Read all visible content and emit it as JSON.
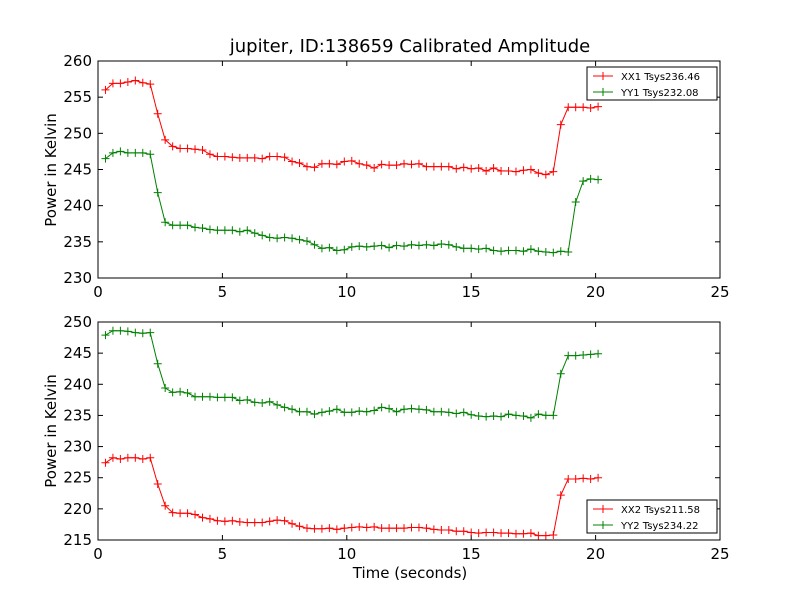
{
  "chart_data": [
    {
      "type": "line",
      "title": "jupiter, ID:138659 Calibrated Amplitude",
      "xlabel": "",
      "ylabel": "Power in Kelvin",
      "xlim": [
        0,
        25
      ],
      "ylim": [
        230,
        260
      ],
      "xticks": [
        "0",
        "5",
        "10",
        "15",
        "20",
        "25"
      ],
      "yticks": [
        "230",
        "235",
        "240",
        "245",
        "250",
        "255",
        "260"
      ],
      "legend_position": "top-right",
      "grid": false,
      "series": [
        {
          "name": "XX1 Tsys236.46",
          "color": "#ff0000",
          "x": [
            0.3,
            0.6,
            0.9,
            1.2,
            1.5,
            1.8,
            2.1,
            2.4,
            2.7,
            3.0,
            3.3,
            3.6,
            3.9,
            4.2,
            4.5,
            4.8,
            5.1,
            5.4,
            5.7,
            6.0,
            6.3,
            6.6,
            6.9,
            7.2,
            7.5,
            7.8,
            8.1,
            8.4,
            8.7,
            9.0,
            9.3,
            9.6,
            9.9,
            10.2,
            10.5,
            10.8,
            11.1,
            11.4,
            11.7,
            12.0,
            12.3,
            12.6,
            12.9,
            13.2,
            13.5,
            13.8,
            14.1,
            14.4,
            14.7,
            15.0,
            15.3,
            15.6,
            15.9,
            16.2,
            16.5,
            16.8,
            17.1,
            17.4,
            17.7,
            18.0,
            18.3,
            18.6,
            18.9,
            19.2,
            19.5,
            19.8,
            20.1
          ],
          "y": [
            256.0,
            256.9,
            256.9,
            257.1,
            257.3,
            257.0,
            256.8,
            252.7,
            249.1,
            248.2,
            247.9,
            247.9,
            247.8,
            247.7,
            247.1,
            246.8,
            246.8,
            246.7,
            246.6,
            246.6,
            246.6,
            246.5,
            246.8,
            246.8,
            246.7,
            246.1,
            245.9,
            245.4,
            245.3,
            245.8,
            245.8,
            245.7,
            246.1,
            246.2,
            245.8,
            245.6,
            245.2,
            245.7,
            245.6,
            245.6,
            245.8,
            245.7,
            245.8,
            245.4,
            245.4,
            245.4,
            245.4,
            245.1,
            245.3,
            245.1,
            245.2,
            244.8,
            245.2,
            244.8,
            244.8,
            244.7,
            244.9,
            245.0,
            244.5,
            244.3,
            244.7,
            251.2,
            253.6,
            253.6,
            253.6,
            253.5,
            253.7
          ]
        },
        {
          "name": "YY1 Tsys232.08",
          "color": "#008000",
          "x": [
            0.3,
            0.6,
            0.9,
            1.2,
            1.5,
            1.8,
            2.1,
            2.4,
            2.7,
            3.0,
            3.3,
            3.6,
            3.9,
            4.2,
            4.5,
            4.8,
            5.1,
            5.4,
            5.7,
            6.0,
            6.3,
            6.6,
            6.9,
            7.2,
            7.5,
            7.8,
            8.1,
            8.4,
            8.7,
            9.0,
            9.3,
            9.6,
            9.9,
            10.2,
            10.5,
            10.8,
            11.1,
            11.4,
            11.7,
            12.0,
            12.3,
            12.6,
            12.9,
            13.2,
            13.5,
            13.8,
            14.1,
            14.4,
            14.7,
            15.0,
            15.3,
            15.6,
            15.9,
            16.2,
            16.5,
            16.8,
            17.1,
            17.4,
            17.7,
            18.0,
            18.3,
            18.6,
            18.9,
            19.2,
            19.5,
            19.8,
            20.1
          ],
          "y": [
            246.5,
            247.3,
            247.5,
            247.3,
            247.3,
            247.3,
            247.1,
            241.8,
            237.7,
            237.3,
            237.3,
            237.3,
            237.0,
            236.9,
            236.7,
            236.6,
            236.6,
            236.6,
            236.4,
            236.6,
            236.2,
            235.9,
            235.6,
            235.5,
            235.6,
            235.5,
            235.3,
            235.1,
            234.6,
            234.1,
            234.2,
            233.8,
            233.9,
            234.3,
            234.4,
            234.3,
            234.4,
            234.5,
            234.2,
            234.5,
            234.4,
            234.6,
            234.5,
            234.6,
            234.5,
            234.7,
            234.6,
            234.3,
            234.1,
            234.1,
            234.0,
            234.1,
            233.8,
            233.7,
            233.8,
            233.8,
            233.7,
            234.0,
            233.7,
            233.6,
            233.5,
            233.7,
            233.6,
            240.5,
            243.4,
            243.7,
            243.6
          ]
        }
      ]
    },
    {
      "type": "line",
      "title": "",
      "xlabel": "Time (seconds)",
      "ylabel": "Power in Kelvin",
      "xlim": [
        0,
        25
      ],
      "ylim": [
        215,
        250
      ],
      "xticks": [
        "0",
        "5",
        "10",
        "15",
        "20",
        "25"
      ],
      "yticks": [
        "215",
        "220",
        "225",
        "230",
        "235",
        "240",
        "245",
        "250"
      ],
      "legend_position": "bottom-right",
      "grid": false,
      "series": [
        {
          "name": "XX2 Tsys211.58",
          "color": "#ff0000",
          "x": [
            0.3,
            0.6,
            0.9,
            1.2,
            1.5,
            1.8,
            2.1,
            2.4,
            2.7,
            3.0,
            3.3,
            3.6,
            3.9,
            4.2,
            4.5,
            4.8,
            5.1,
            5.4,
            5.7,
            6.0,
            6.3,
            6.6,
            6.9,
            7.2,
            7.5,
            7.8,
            8.1,
            8.4,
            8.7,
            9.0,
            9.3,
            9.6,
            9.9,
            10.2,
            10.5,
            10.8,
            11.1,
            11.4,
            11.7,
            12.0,
            12.3,
            12.6,
            12.9,
            13.2,
            13.5,
            13.8,
            14.1,
            14.4,
            14.7,
            15.0,
            15.3,
            15.6,
            15.9,
            16.2,
            16.5,
            16.8,
            17.1,
            17.4,
            17.7,
            18.0,
            18.3,
            18.6,
            18.9,
            19.2,
            19.5,
            19.8,
            20.1
          ],
          "y": [
            227.4,
            228.2,
            228.0,
            228.2,
            228.2,
            228.0,
            228.2,
            224.0,
            220.5,
            219.4,
            219.3,
            219.3,
            219.1,
            218.6,
            218.4,
            218.1,
            218.0,
            218.1,
            217.9,
            217.8,
            217.8,
            217.8,
            218.0,
            218.2,
            218.1,
            217.6,
            217.2,
            216.9,
            216.8,
            216.8,
            216.9,
            216.7,
            216.9,
            217.0,
            217.1,
            217.0,
            217.1,
            216.9,
            216.9,
            216.9,
            216.9,
            217.0,
            217.0,
            216.9,
            216.7,
            216.6,
            216.6,
            216.4,
            216.4,
            216.2,
            216.1,
            216.2,
            216.2,
            216.1,
            216.1,
            216.0,
            216.0,
            216.1,
            215.7,
            215.7,
            215.8,
            222.2,
            224.8,
            224.8,
            224.9,
            224.8,
            225.0
          ]
        },
        {
          "name": "YY2 Tsys234.22",
          "color": "#008000",
          "x": [
            0.3,
            0.6,
            0.9,
            1.2,
            1.5,
            1.8,
            2.1,
            2.4,
            2.7,
            3.0,
            3.3,
            3.6,
            3.9,
            4.2,
            4.5,
            4.8,
            5.1,
            5.4,
            5.7,
            6.0,
            6.3,
            6.6,
            6.9,
            7.2,
            7.5,
            7.8,
            8.1,
            8.4,
            8.7,
            9.0,
            9.3,
            9.6,
            9.9,
            10.2,
            10.5,
            10.8,
            11.1,
            11.4,
            11.7,
            12.0,
            12.3,
            12.6,
            12.9,
            13.2,
            13.5,
            13.8,
            14.1,
            14.4,
            14.7,
            15.0,
            15.3,
            15.6,
            15.9,
            16.2,
            16.5,
            16.8,
            17.1,
            17.4,
            17.7,
            18.0,
            18.3,
            18.6,
            18.9,
            19.2,
            19.5,
            19.8,
            20.1
          ],
          "y": [
            247.9,
            248.6,
            248.6,
            248.5,
            248.3,
            248.2,
            248.3,
            243.3,
            239.4,
            238.7,
            238.8,
            238.6,
            238.0,
            238.0,
            238.0,
            237.9,
            237.9,
            237.9,
            237.4,
            237.5,
            237.1,
            237.0,
            237.2,
            236.7,
            236.3,
            236.0,
            235.6,
            235.6,
            235.2,
            235.5,
            235.7,
            236.0,
            235.5,
            235.5,
            235.7,
            235.6,
            235.8,
            236.3,
            236.1,
            235.6,
            236.0,
            236.1,
            236.0,
            235.9,
            235.6,
            235.6,
            235.5,
            235.3,
            235.5,
            235.1,
            234.9,
            234.8,
            234.9,
            234.8,
            235.2,
            235.0,
            234.9,
            234.6,
            235.2,
            235.0,
            235.0,
            241.7,
            244.6,
            244.6,
            244.7,
            244.8,
            244.9
          ]
        }
      ]
    }
  ]
}
